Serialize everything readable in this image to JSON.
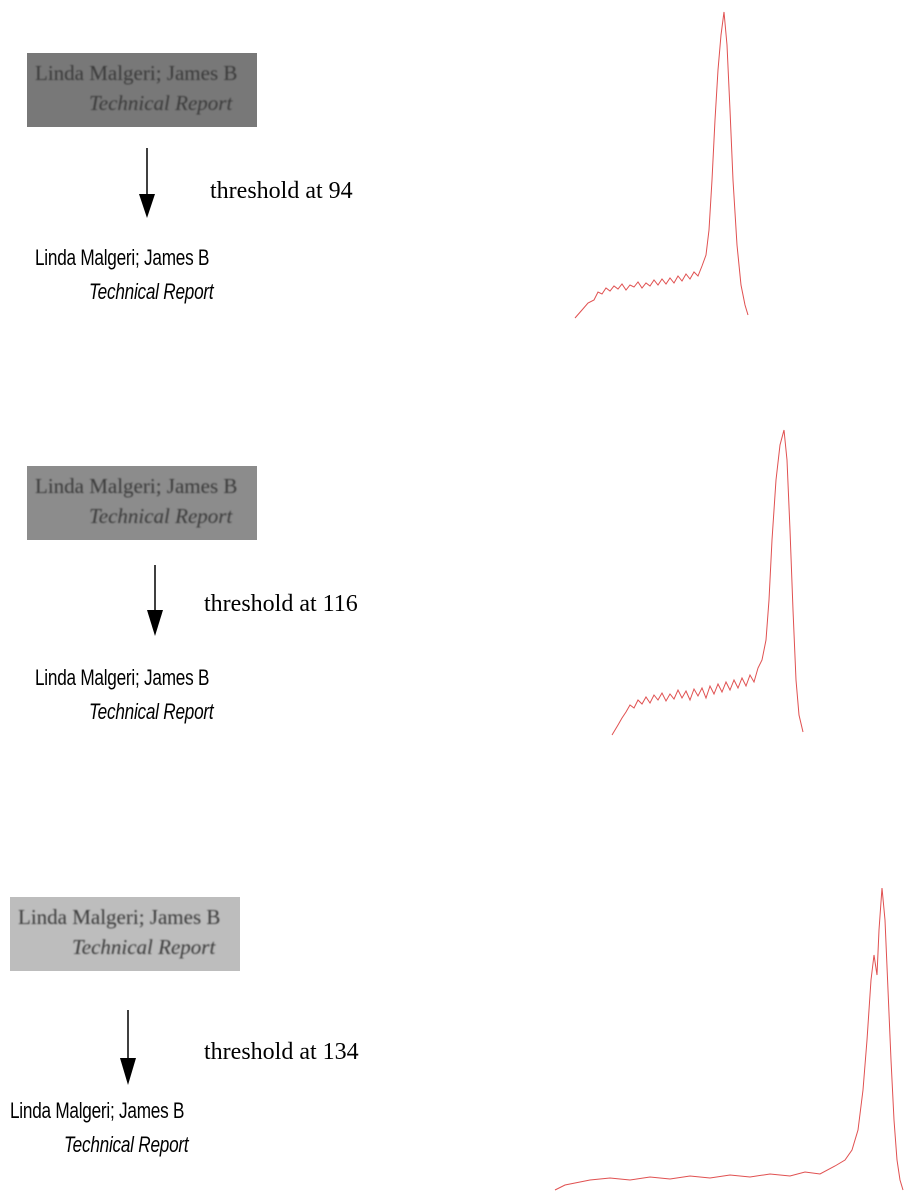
{
  "rows": [
    {
      "gray_text": [
        "Linda Malgeri; James B",
        "Technical Report"
      ],
      "label": "threshold at 94",
      "binary_text": [
        "Linda Malgeri; James B",
        "Technical Report"
      ]
    },
    {
      "gray_text": [
        "Linda Malgeri; James B",
        "Technical Report"
      ],
      "label": "threshold at 116",
      "binary_text": [
        "Linda Malgeri; James B",
        "Technical Report"
      ]
    },
    {
      "gray_text": [
        "Linda Malgeri; James B",
        "Technical Report"
      ],
      "label": "threshold at 134",
      "binary_text": [
        "Linda Malgeri; James B",
        "Technical Report"
      ]
    }
  ]
}
